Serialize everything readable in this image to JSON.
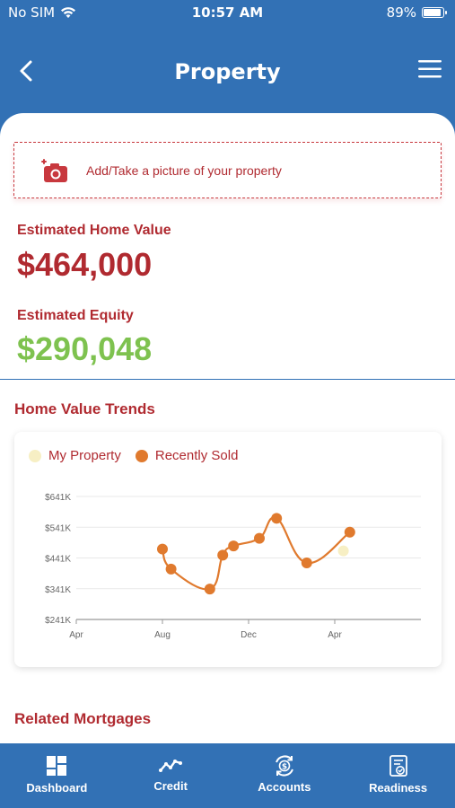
{
  "status": {
    "carrier": "No SIM",
    "time": "10:57 AM",
    "battery": "89%",
    "battery_level": 0.89
  },
  "header": {
    "title": "Property"
  },
  "photo": {
    "label": "Add/Take a picture of your property"
  },
  "home_value": {
    "label": "Estimated Home Value",
    "value": "$464,000"
  },
  "equity": {
    "label": "Estimated Equity",
    "value": "$290,048"
  },
  "trends": {
    "title": "Home Value Trends"
  },
  "mortgages": {
    "title": "Related Mortgages"
  },
  "colors": {
    "primary": "#3271b5",
    "accent_red": "#b02a30",
    "equity_green": "#7ec24f",
    "recently_sold": "#e07a2e",
    "my_property": "#f7efc4"
  },
  "chart_data": {
    "type": "line",
    "legend": [
      "My Property",
      "Recently Sold"
    ],
    "legend_position": "top-left",
    "x_ticks": [
      "Apr",
      "Aug",
      "Dec",
      "Apr"
    ],
    "y_ticks": [
      "$241K",
      "$341K",
      "$441K",
      "$541K",
      "$641K"
    ],
    "ylim": [
      241,
      641
    ],
    "xlim": [
      0,
      16
    ],
    "grid": true,
    "series": [
      {
        "name": "Recently Sold",
        "x": [
          4,
          4.4,
          6.2,
          6.8,
          7.3,
          8.5,
          9.3,
          10.7,
          12.7
        ],
        "y": [
          470,
          405,
          340,
          450,
          480,
          505,
          570,
          425,
          525
        ]
      },
      {
        "name": "My Property",
        "x": [
          12.4
        ],
        "y": [
          464
        ]
      }
    ]
  },
  "nav": {
    "items": [
      {
        "label": "Dashboard",
        "icon": "dashboard-icon"
      },
      {
        "label": "Credit",
        "icon": "trend-icon"
      },
      {
        "label": "Accounts",
        "icon": "accounts-icon"
      },
      {
        "label": "Readiness",
        "icon": "readiness-icon"
      }
    ]
  }
}
